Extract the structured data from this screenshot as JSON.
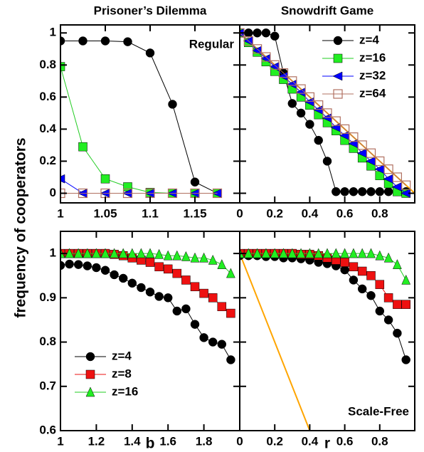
{
  "ylabel": "frequency of cooperators",
  "chart_data": [
    {
      "type": "line",
      "title": "Prisoner’s Dilemma",
      "annotation": "Regular",
      "x": [
        1,
        1.025,
        1.05,
        1.075,
        1.1,
        1.125,
        1.15,
        1.175
      ],
      "xlim": [
        1,
        1.2
      ],
      "xticks": [
        1,
        1.05,
        1.1,
        1.15
      ],
      "ylim": [
        -0.06,
        1.05
      ],
      "yticks": [
        0,
        0.2,
        0.4,
        0.6,
        0.8,
        1
      ],
      "series": [
        {
          "name": "z=4",
          "color": "#000000",
          "marker": "circle",
          "values": [
            0.95,
            0.95,
            0.95,
            0.945,
            0.875,
            0.555,
            0.07,
            0
          ]
        },
        {
          "name": "z=16",
          "color": "#22ee22",
          "marker": "square",
          "values": [
            0.79,
            0.29,
            0.09,
            0.04,
            0.005,
            0,
            0,
            0
          ]
        },
        {
          "name": "z=32",
          "color": "#0000ff",
          "marker": "triangle-left",
          "values": [
            0.09,
            0,
            0,
            0,
            0,
            0,
            0,
            0
          ]
        },
        {
          "name": "z=64",
          "color": "#b07060",
          "marker": "open-square",
          "values": [
            0,
            0,
            0,
            0,
            0,
            0,
            0,
            0
          ]
        }
      ]
    },
    {
      "type": "line",
      "title": "Snowdrift Game",
      "legend": "upper right",
      "x": [
        0,
        0.05,
        0.1,
        0.15,
        0.2,
        0.25,
        0.3,
        0.35,
        0.4,
        0.45,
        0.5,
        0.55,
        0.6,
        0.65,
        0.7,
        0.75,
        0.8,
        0.85,
        0.9,
        0.95
      ],
      "xlim": [
        0,
        1
      ],
      "xticks": [
        0,
        0.2,
        0.4,
        0.6,
        0.8
      ],
      "ylim": [
        -0.06,
        1.05
      ],
      "yticks": [
        0,
        0.2,
        0.4,
        0.6,
        0.8,
        1
      ],
      "reference_line": {
        "color": "#ffa500",
        "x": [
          0,
          1
        ],
        "values": [
          1,
          0
        ]
      },
      "series": [
        {
          "name": "z=4",
          "color": "#000000",
          "marker": "circle",
          "values": [
            1,
            1,
            1,
            1,
            0.98,
            0.75,
            0.56,
            0.5,
            0.43,
            0.33,
            0.2,
            0.01,
            0.01,
            0.01,
            0.01,
            0.01,
            0.01,
            0.01,
            0.01,
            0.01
          ]
        },
        {
          "name": "z=16",
          "color": "#22ee22",
          "marker": "square",
          "values": [
            1,
            0.94,
            0.88,
            0.82,
            0.76,
            0.71,
            0.65,
            0.6,
            0.55,
            0.49,
            0.44,
            0.39,
            0.33,
            0.28,
            0.22,
            0.17,
            0.11,
            0.06,
            0.01,
            0
          ]
        },
        {
          "name": "z=32",
          "color": "#0000ff",
          "marker": "triangle-left",
          "values": [
            1,
            0.95,
            0.89,
            0.84,
            0.79,
            0.73,
            0.68,
            0.63,
            0.57,
            0.52,
            0.47,
            0.41,
            0.36,
            0.31,
            0.25,
            0.2,
            0.15,
            0.09,
            0.04,
            0
          ]
        },
        {
          "name": "z=64",
          "color": "#b07060",
          "marker": "open-square",
          "values": [
            1,
            0.95,
            0.9,
            0.85,
            0.8,
            0.75,
            0.7,
            0.65,
            0.6,
            0.55,
            0.5,
            0.45,
            0.4,
            0.35,
            0.3,
            0.25,
            0.2,
            0.15,
            0.1,
            0.05
          ]
        }
      ]
    },
    {
      "type": "line",
      "xlabel": "b",
      "legend": "lower left",
      "x": [
        1,
        1.05,
        1.1,
        1.15,
        1.2,
        1.25,
        1.3,
        1.35,
        1.4,
        1.45,
        1.5,
        1.55,
        1.6,
        1.65,
        1.7,
        1.75,
        1.8,
        1.85,
        1.9,
        1.95
      ],
      "xlim": [
        1,
        2
      ],
      "xticks": [
        1,
        1.2,
        1.4,
        1.6,
        1.8
      ],
      "ylim": [
        0.6,
        1.05
      ],
      "yticks": [
        0.6,
        0.7,
        0.8,
        0.9,
        1
      ],
      "series": [
        {
          "name": "z=4",
          "color": "#000000",
          "marker": "circle",
          "values": [
            0.973,
            0.976,
            0.975,
            0.972,
            0.968,
            0.962,
            0.952,
            0.944,
            0.933,
            0.923,
            0.913,
            0.903,
            0.9,
            0.87,
            0.875,
            0.84,
            0.81,
            0.8,
            0.795,
            0.76
          ]
        },
        {
          "name": "z=8",
          "color": "#ee1111",
          "marker": "square",
          "values": [
            1,
            1,
            1,
            1,
            1,
            1,
            0.998,
            0.995,
            0.99,
            0.985,
            0.98,
            0.97,
            0.965,
            0.955,
            0.94,
            0.925,
            0.91,
            0.9,
            0.88,
            0.865
          ]
        },
        {
          "name": "z=16",
          "color": "#22ee22",
          "marker": "triangle-up",
          "values": [
            1,
            1,
            1,
            1,
            1,
            1,
            1,
            1,
            1,
            1,
            1,
            0.998,
            0.995,
            0.995,
            0.993,
            0.99,
            0.99,
            0.985,
            0.975,
            0.955
          ]
        }
      ]
    },
    {
      "type": "line",
      "xlabel": "r",
      "annotation": "Scale-Free",
      "x": [
        0,
        0.05,
        0.1,
        0.15,
        0.2,
        0.25,
        0.3,
        0.35,
        0.4,
        0.45,
        0.5,
        0.55,
        0.6,
        0.65,
        0.7,
        0.75,
        0.8,
        0.85,
        0.9,
        0.95
      ],
      "xlim": [
        0,
        1
      ],
      "xticks": [
        0,
        0.2,
        0.4,
        0.6,
        0.8
      ],
      "ylim": [
        0.6,
        1.05
      ],
      "yticks": [
        0.6,
        0.7,
        0.8,
        0.9,
        1
      ],
      "reference_line": {
        "color": "#ffa500",
        "x": [
          0,
          0.4
        ],
        "values": [
          1,
          0.6
        ]
      },
      "series": [
        {
          "name": "z=4",
          "color": "#000000",
          "marker": "circle",
          "values": [
            0.995,
            0.995,
            0.995,
            0.993,
            0.993,
            0.99,
            0.99,
            0.988,
            0.985,
            0.98,
            0.977,
            0.972,
            0.963,
            0.94,
            0.92,
            0.905,
            0.87,
            0.85,
            0.82,
            0.76
          ]
        },
        {
          "name": "z=8",
          "color": "#ee1111",
          "marker": "square",
          "values": [
            1,
            1,
            1,
            1,
            1,
            1,
            1,
            0.998,
            0.998,
            0.995,
            0.99,
            0.985,
            0.98,
            0.97,
            0.96,
            0.95,
            0.93,
            0.9,
            0.885,
            0.885
          ]
        },
        {
          "name": "z=16",
          "color": "#22ee22",
          "marker": "triangle-up",
          "values": [
            1,
            1,
            1,
            1,
            1,
            1,
            1,
            1,
            1,
            1,
            1,
            1,
            1,
            1,
            1,
            1,
            0.995,
            0.99,
            0.975,
            0.94
          ]
        }
      ]
    }
  ]
}
